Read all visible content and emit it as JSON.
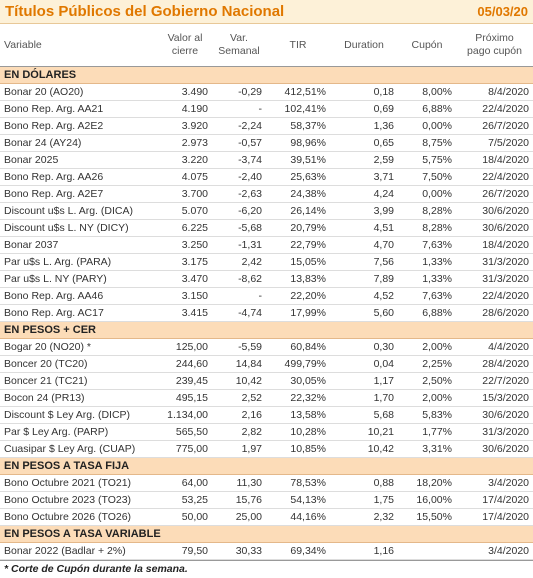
{
  "header": {
    "title": "Títulos Públicos del Gobierno Nacional",
    "date": "05/03/20"
  },
  "columns": [
    [
      "Variable"
    ],
    [
      "Valor al",
      "cierre"
    ],
    [
      "Var.",
      "Semanal"
    ],
    [
      "TIR"
    ],
    [
      "Duration"
    ],
    [
      "Cupón"
    ],
    [
      "Próximo",
      "pago cupón"
    ]
  ],
  "sections": [
    {
      "title": "EN DÓLARES",
      "rows": [
        [
          "Bonar 20 (AO20)",
          "3.490",
          "-0,29",
          "412,51%",
          "0,18",
          "8,00%",
          "8/4/2020"
        ],
        [
          "Bono Rep. Arg. AA21",
          "4.190",
          "-",
          "102,41%",
          "0,69",
          "6,88%",
          "22/4/2020"
        ],
        [
          "Bono Rep. Arg. A2E2",
          "3.920",
          "-2,24",
          "58,37%",
          "1,36",
          "0,00%",
          "26/7/2020"
        ],
        [
          "Bonar 24 (AY24)",
          "2.973",
          "-0,57",
          "98,96%",
          "0,65",
          "8,75%",
          "7/5/2020"
        ],
        [
          "Bonar 2025",
          "3.220",
          "-3,74",
          "39,51%",
          "2,59",
          "5,75%",
          "18/4/2020"
        ],
        [
          "Bono Rep. Arg. AA26",
          "4.075",
          "-2,40",
          "25,63%",
          "3,71",
          "7,50%",
          "22/4/2020"
        ],
        [
          "Bono Rep. Arg. A2E7",
          "3.700",
          "-2,63",
          "24,38%",
          "4,24",
          "0,00%",
          "26/7/2020"
        ],
        [
          "Discount u$s L. Arg. (DICA)",
          "5.070",
          "-6,20",
          "26,14%",
          "3,99",
          "8,28%",
          "30/6/2020"
        ],
        [
          "Discount u$s L. NY (DICY)",
          "6.225",
          "-5,68",
          "20,79%",
          "4,51",
          "8,28%",
          "30/6/2020"
        ],
        [
          "Bonar 2037",
          "3.250",
          "-1,31",
          "22,79%",
          "4,70",
          "7,63%",
          "18/4/2020"
        ],
        [
          "Par u$s L. Arg. (PARA)",
          "3.175",
          "2,42",
          "15,05%",
          "7,56",
          "1,33%",
          "31/3/2020"
        ],
        [
          "Par u$s L. NY (PARY)",
          "3.470",
          "-8,62",
          "13,83%",
          "7,89",
          "1,33%",
          "31/3/2020"
        ],
        [
          "Bono Rep. Arg. AA46",
          "3.150",
          "-",
          "22,20%",
          "4,52",
          "7,63%",
          "22/4/2020"
        ],
        [
          "Bono Rep. Arg. AC17",
          "3.415",
          "-4,74",
          "17,99%",
          "5,60",
          "6,88%",
          "28/6/2020"
        ]
      ]
    },
    {
      "title": "EN PESOS + CER",
      "rows": [
        [
          "Bogar 20 (NO20) *",
          "125,00",
          "-5,59",
          "60,84%",
          "0,30",
          "2,00%",
          "4/4/2020"
        ],
        [
          "Boncer 20 (TC20)",
          "244,60",
          "14,84",
          "499,79%",
          "0,04",
          "2,25%",
          "28/4/2020"
        ],
        [
          "Boncer 21 (TC21)",
          "239,45",
          "10,42",
          "30,05%",
          "1,17",
          "2,50%",
          "22/7/2020"
        ],
        [
          "Bocon 24 (PR13)",
          "495,15",
          "2,52",
          "22,32%",
          "1,70",
          "2,00%",
          "15/3/2020"
        ],
        [
          "Discount $ Ley Arg. (DICP)",
          "1.134,00",
          "2,16",
          "13,58%",
          "5,68",
          "5,83%",
          "30/6/2020"
        ],
        [
          "Par $ Ley Arg. (PARP)",
          "565,50",
          "2,82",
          "10,28%",
          "10,21",
          "1,77%",
          "31/3/2020"
        ],
        [
          "Cuasipar $ Ley Arg. (CUAP)",
          "775,00",
          "1,97",
          "10,85%",
          "10,42",
          "3,31%",
          "30/6/2020"
        ]
      ]
    },
    {
      "title": "EN PESOS A TASA FIJA",
      "rows": [
        [
          "Bono Octubre 2021 (TO21)",
          "64,00",
          "11,30",
          "78,53%",
          "0,88",
          "18,20%",
          "3/4/2020"
        ],
        [
          "Bono Octubre 2023 (TO23)",
          "53,25",
          "15,76",
          "54,13%",
          "1,75",
          "16,00%",
          "17/4/2020"
        ],
        [
          "Bono Octubre 2026 (TO26)",
          "50,00",
          "25,00",
          "44,16%",
          "2,32",
          "15,50%",
          "17/4/2020"
        ]
      ]
    },
    {
      "title": "EN PESOS A TASA VARIABLE",
      "rows": [
        [
          "Bonar 2022 (Badlar + 2%)",
          "79,50",
          "30,33",
          "69,34%",
          "1,16",
          null,
          "3/4/2020"
        ]
      ]
    }
  ],
  "footnote": "* Corte de Cupón durante la semana."
}
